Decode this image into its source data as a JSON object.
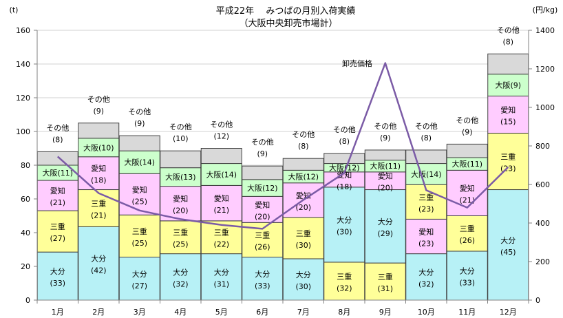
{
  "chart_data": {
    "type": "bar",
    "title": "平成22年　 みつばの月別入荷実績",
    "subtitle": "（大阪中央卸売市場計）",
    "ylabel_left": "(t)",
    "ylabel_right": "(円/kg)",
    "ylim": [
      0,
      160
    ],
    "ylim_right": [
      0,
      1400
    ],
    "yticks": [
      "0",
      "20",
      "40",
      "60",
      "80",
      "100",
      "120",
      "140",
      "160"
    ],
    "yticks_right": [
      "0",
      "200",
      "400",
      "600",
      "800",
      "1000",
      "1200",
      "1400"
    ],
    "categories": [
      "1月",
      "2月",
      "3月",
      "4月",
      "5月",
      "6月",
      "7月",
      "8月",
      "9月",
      "10月",
      "11月",
      "12月"
    ],
    "stack_orders": [
      [
        "大分",
        "三重",
        "愛知",
        "大阪",
        "その他"
      ],
      [
        "大分",
        "三重",
        "愛知",
        "大阪",
        "その他"
      ],
      [
        "大分",
        "三重",
        "愛知",
        "大阪",
        "その他"
      ],
      [
        "大分",
        "三重",
        "愛知",
        "大阪",
        "その他"
      ],
      [
        "大分",
        "三重",
        "愛知",
        "大阪",
        "その他"
      ],
      [
        "大分",
        "三重",
        "愛知",
        "大阪",
        "その他"
      ],
      [
        "大分",
        "三重",
        "愛知",
        "大阪",
        "その他"
      ],
      [
        "三重",
        "大分",
        "愛知",
        "大阪",
        "その他"
      ],
      [
        "三重",
        "大分",
        "愛知",
        "大阪",
        "その他"
      ],
      [
        "大分",
        "愛知",
        "三重",
        "大阪",
        "その他"
      ],
      [
        "大分",
        "三重",
        "愛知",
        "大阪",
        "その他"
      ],
      [
        "大分",
        "三重",
        "愛知",
        "大阪",
        "その他"
      ]
    ],
    "series": [
      {
        "name": "大分",
        "color": "#b7f1f6",
        "values": [
          28.5,
          43.5,
          25.5,
          27.5,
          27.5,
          25.5,
          24.5,
          44.5,
          43.5,
          27.5,
          29,
          65.5
        ]
      },
      {
        "name": "三重",
        "color": "#ffff99",
        "values": [
          24.5,
          22,
          25,
          19.5,
          19.5,
          20.5,
          24.5,
          22.5,
          22,
          20.5,
          21,
          33.5
        ]
      },
      {
        "name": "愛知",
        "color": "#ffccff",
        "values": [
          18,
          19.5,
          24.5,
          20.5,
          21,
          15.5,
          20.5,
          9,
          10.5,
          20.5,
          27,
          22
        ]
      },
      {
        "name": "大阪",
        "color": "#ccffcc",
        "values": [
          9,
          11,
          13.5,
          11,
          13,
          10,
          7.5,
          5,
          7,
          12.5,
          7.5,
          13
        ]
      },
      {
        "name": "その他",
        "color": "#d9d9d9",
        "values": [
          8,
          9,
          9,
          10,
          9,
          8,
          7,
          6,
          6,
          8,
          8,
          12
        ]
      }
    ],
    "segment_labels": [
      [
        "(33)",
        "(27)",
        "(21)",
        "(11)",
        "(8)"
      ],
      [
        "(42)",
        "(21)",
        "(18)",
        "(10)",
        "(9)"
      ],
      [
        "(27)",
        "(25)",
        "(25)",
        "(14)",
        "(9)"
      ],
      [
        "(32)",
        "(25)",
        "(20)",
        "(13)",
        "(10)"
      ],
      [
        "(31)",
        "(22)",
        "(21)",
        "(14)",
        "(12)"
      ],
      [
        "(33)",
        "(26)",
        "(20)",
        "(12)",
        "(9)"
      ],
      [
        "(30)",
        "(30)",
        "(20)",
        "(12)",
        "(8)"
      ],
      [
        "(32)",
        "(30)",
        "(18)",
        "(12)",
        "(8)"
      ],
      [
        "(31)",
        "(29)",
        "(20)",
        "(11)",
        "(9)"
      ],
      [
        "(32)",
        "(23)",
        "(23)",
        "(14)",
        "(8)"
      ],
      [
        "(33)",
        "(26)",
        "(21)",
        "(11)",
        "(9)"
      ],
      [
        "(45)",
        "(23)",
        "(15)",
        "(9)",
        "(8)"
      ]
    ],
    "price_line": {
      "name": "卸売価格",
      "color": "#7b5ba6",
      "axis": "right",
      "values": [
        745,
        555,
        465,
        420,
        390,
        370,
        520,
        660,
        1230,
        570,
        480,
        690
      ]
    },
    "grid": true,
    "legend": "none"
  }
}
